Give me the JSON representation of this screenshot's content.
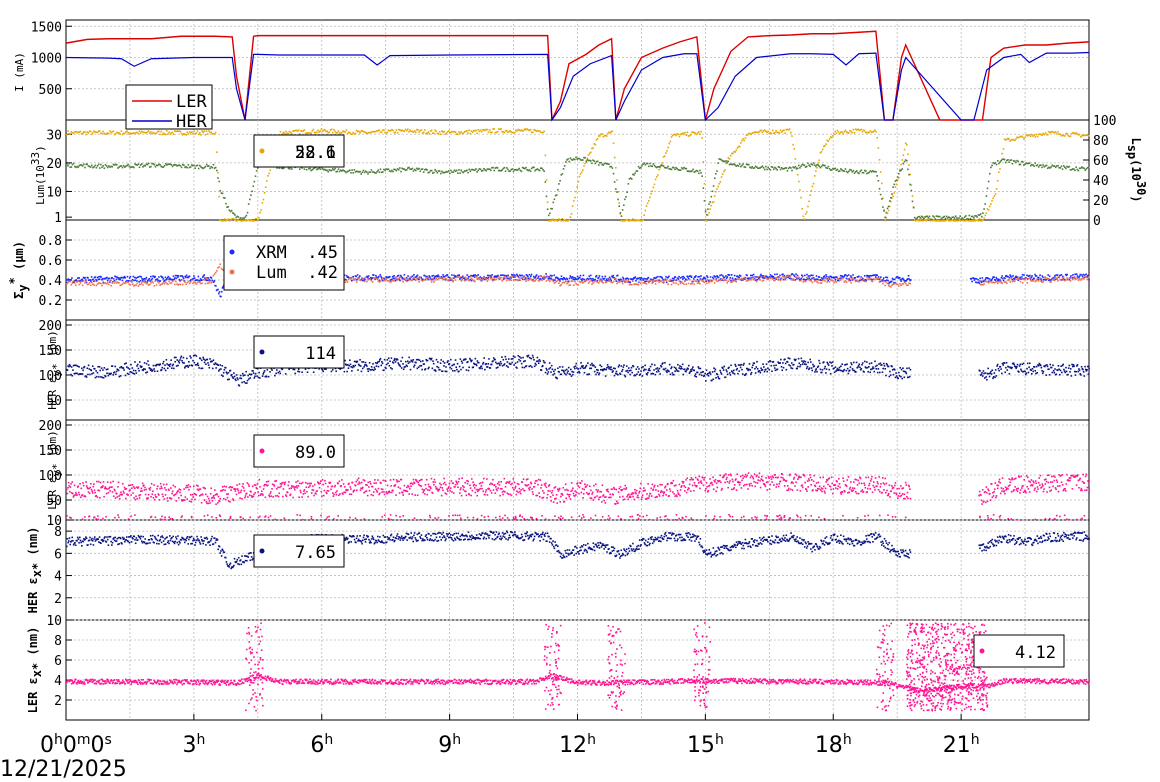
{
  "date_label": "12/21/2025",
  "time_ticks": [
    {
      "label": "0",
      "sup": "h",
      "label2": "0",
      "sup2": "m",
      "label3": "0",
      "sup3": "s"
    },
    {
      "label": "3",
      "sup": "h"
    },
    {
      "label": "6",
      "sup": "h"
    },
    {
      "label": "9",
      "sup": "h"
    },
    {
      "label": "12",
      "sup": "h"
    },
    {
      "label": "15",
      "sup": "h"
    },
    {
      "label": "18",
      "sup": "h"
    },
    {
      "label": "21",
      "sup": "h"
    }
  ],
  "panels": {
    "current": {
      "ylabel": "I (mA)",
      "ticks": [
        "500",
        "1000",
        "1500"
      ],
      "legend": [
        {
          "name": "LER",
          "color": "#dd0000"
        },
        {
          "name": "HER",
          "color": "#0000cc"
        }
      ]
    },
    "lum": {
      "ylabel_main": "Lum(10",
      "ylabel_sup": "33",
      "ylabel_end": ")",
      "ticks": [
        "1",
        "10",
        "20",
        "30"
      ],
      "right_label": "L",
      "right_sub": "sp",
      "right_mid": "(10",
      "right_sup": "30",
      "right_end": ")",
      "right_ticks": [
        "0",
        "20",
        "40",
        "60",
        "80",
        "100"
      ],
      "box_lines": [
        "52.6",
        "28.1"
      ],
      "colors": {
        "lum": "#4f7c3a",
        "lsp": "#e6a800"
      }
    },
    "sigma": {
      "ylabel": "Σ",
      "ylabel_sub": "y",
      "ylabel_sup": "*",
      "ylabel_end": " (μm)",
      "ticks": [
        "0.2",
        "0.4",
        "0.6",
        "0.8"
      ],
      "legend": [
        {
          "name": "XRM",
          "value": ".45",
          "color": "#1a2bff"
        },
        {
          "name": "Lum",
          "value": ".42",
          "color": "#f07050"
        }
      ]
    },
    "her_eps_y": {
      "ylabel": "HER ε",
      "ylabel_sub": "y*",
      "ylabel_end": " (pm)",
      "ticks": [
        "50",
        "100",
        "150",
        "200"
      ],
      "box": "114",
      "color": "#0a1480"
    },
    "ler_eps_y": {
      "ylabel": "LER ε",
      "ylabel_sub": "y*",
      "ylabel_end": " (pm)",
      "ticks": [
        "10",
        "50",
        "100",
        "150",
        "200"
      ],
      "box": "89.0",
      "color": "#ff1493"
    },
    "her_eps_x": {
      "ylabel": "HER ε",
      "ylabel_sub": "x*",
      "ylabel_end": " (nm)",
      "ticks": [
        "2",
        "4",
        "6",
        "8"
      ],
      "box": "7.65",
      "color": "#0a1480"
    },
    "ler_eps_x": {
      "ylabel": "LER ε",
      "ylabel_sub": "x*",
      "ylabel_end": " (nm)",
      "ticks": [
        "2",
        "4",
        "6",
        "8",
        "10"
      ],
      "box": "4.12",
      "color": "#ff1493"
    }
  },
  "chart_data": [
    {
      "type": "line",
      "title": "",
      "ylabel": "I (mA)",
      "xlabel": "",
      "x_unit": "hours",
      "xlim": [
        0,
        24
      ],
      "ylim": [
        0,
        1600
      ],
      "series": [
        {
          "name": "LER",
          "x": [
            0,
            0.5,
            1,
            2,
            2.7,
            3.5,
            3.9,
            4,
            4.2,
            4.4,
            4.5,
            4.6,
            5,
            6,
            8,
            10,
            11.3,
            11.4,
            11.6,
            11.8,
            12.2,
            12.5,
            12.8,
            12.9,
            13.1,
            13.5,
            14,
            14.4,
            14.8,
            15,
            15.2,
            15.6,
            16,
            16.5,
            17,
            17.5,
            18,
            18.5,
            19,
            19.2,
            19.4,
            19.6,
            19.7,
            20.5,
            21,
            21.3,
            21.5,
            21.7,
            22,
            22.5,
            23,
            23.5,
            24
          ],
          "y": [
            1230,
            1290,
            1300,
            1300,
            1340,
            1340,
            1330,
            700,
            0,
            1340,
            1350,
            1350,
            1350,
            1350,
            1350,
            1350,
            1350,
            0,
            300,
            900,
            1050,
            1200,
            1300,
            0,
            500,
            1000,
            1150,
            1250,
            1330,
            0,
            500,
            1100,
            1330,
            1350,
            1360,
            1380,
            1380,
            1400,
            1420,
            0,
            0,
            1000,
            1200,
            0,
            0,
            0,
            0,
            1000,
            1150,
            1200,
            1200,
            1230,
            1250
          ]
        },
        {
          "name": "HER",
          "x": [
            0,
            1,
            1.3,
            1.6,
            2,
            3,
            3.5,
            3.9,
            4,
            4.2,
            4.4,
            4.5,
            5,
            6,
            7,
            7.3,
            7.6,
            9,
            11.3,
            11.4,
            11.6,
            11.9,
            12.3,
            12.8,
            12.9,
            13.1,
            13.5,
            14,
            14.5,
            14.8,
            15,
            15.3,
            15.7,
            16.2,
            17,
            17.5,
            18,
            18.3,
            18.6,
            19,
            19.2,
            19.4,
            19.6,
            19.7,
            21,
            21.3,
            21.6,
            22,
            22.4,
            22.6,
            23,
            23.6,
            24
          ],
          "y": [
            1000,
            990,
            980,
            860,
            980,
            1000,
            1000,
            1000,
            500,
            0,
            1050,
            1050,
            1040,
            1040,
            1040,
            880,
            1030,
            1040,
            1050,
            0,
            200,
            700,
            900,
            1030,
            0,
            300,
            800,
            1000,
            1060,
            1060,
            0,
            200,
            700,
            1000,
            1060,
            1060,
            1050,
            880,
            1060,
            1070,
            0,
            0,
            800,
            1000,
            0,
            0,
            800,
            1000,
            1050,
            920,
            1070,
            1070,
            1080
          ]
        }
      ]
    },
    {
      "type": "line",
      "title": "",
      "ylabel": "Lum(10^33)",
      "y2label": "Lsp(10^30)",
      "xlim": [
        0,
        24
      ],
      "ylim": [
        1,
        35
      ],
      "y2lim": [
        0,
        100
      ],
      "series": [
        {
          "name": "Lum",
          "x": [
            0,
            1,
            2,
            3,
            3.5,
            3.6,
            3.8,
            4,
            4.2,
            4.5,
            5,
            6,
            7,
            8,
            9,
            10,
            11.2,
            11.3,
            11.5,
            11.7,
            12,
            12.5,
            12.8,
            13,
            13.2,
            13.5,
            14,
            14.5,
            14.9,
            15,
            15.3,
            15.6,
            16,
            17,
            17.5,
            18,
            18.5,
            19,
            19.2,
            19.4,
            19.7,
            19.9,
            21,
            21.5,
            21.7,
            22,
            23,
            24
          ],
          "y": [
            19.5,
            19,
            19.5,
            19,
            19,
            11,
            4,
            1,
            1,
            20,
            19,
            18,
            17,
            18,
            17,
            18,
            18,
            1,
            10,
            21,
            22,
            20,
            19,
            1,
            14,
            20,
            19,
            18,
            17,
            1,
            21,
            20,
            19,
            18,
            20,
            18,
            17,
            17,
            1,
            12,
            22,
            1,
            1,
            2,
            20,
            21,
            19,
            18
          ]
        },
        {
          "name": "Lsp",
          "x": [
            0,
            1,
            2,
            3,
            3.5,
            3.6,
            4,
            4.5,
            4.7,
            5,
            6,
            7,
            8,
            9,
            10,
            11.2,
            11.3,
            11.8,
            12,
            12.3,
            12.5,
            12.8,
            13,
            13.5,
            13.8,
            14.2,
            14.9,
            15,
            15.5,
            16,
            17,
            17.3,
            17.7,
            18,
            18.5,
            19,
            19.2,
            19.5,
            19.7,
            19.9,
            21,
            21.5,
            21.8,
            22,
            23,
            24
          ],
          "y": [
            88,
            88,
            88,
            88,
            88,
            0,
            0,
            0,
            40,
            88,
            90,
            88,
            90,
            88,
            90,
            90,
            0,
            0,
            40,
            70,
            85,
            88,
            0,
            0,
            40,
            85,
            88,
            0,
            60,
            88,
            90,
            0,
            70,
            88,
            90,
            90,
            0,
            40,
            80,
            0,
            0,
            0,
            30,
            80,
            88,
            85
          ]
        }
      ]
    },
    {
      "type": "scatter",
      "title": "",
      "ylabel": "Σy* (μm)",
      "xlim": [
        0,
        24
      ],
      "ylim": [
        0,
        1
      ],
      "series": [
        {
          "name": "XRM",
          "x": [
            0,
            2,
            3.4,
            3.6,
            4,
            4.5,
            6,
            8,
            10,
            11.3,
            11.6,
            12.8,
            13.2,
            14.8,
            15.2,
            17,
            17.5,
            19,
            19.3,
            19.6,
            20.5,
            21.5,
            22,
            24
          ],
          "y": [
            0.41,
            0.42,
            0.43,
            0.25,
            0.65,
            0.42,
            0.43,
            0.43,
            0.43,
            0.44,
            0.42,
            0.43,
            0.41,
            0.42,
            0.43,
            0.44,
            0.43,
            0.43,
            0.4,
            0.42,
            0.45,
            0.4,
            0.43,
            0.44
          ]
        },
        {
          "name": "Lum",
          "x": [
            0,
            2,
            3.4,
            3.6,
            4,
            4.5,
            6,
            8,
            10,
            11.3,
            11.6,
            12.8,
            13.2,
            14.8,
            15.2,
            17,
            17.5,
            19,
            19.3,
            19.6,
            21.5,
            22,
            24
          ],
          "y": [
            0.38,
            0.37,
            0.4,
            0.55,
            0.42,
            0.4,
            0.41,
            0.41,
            0.42,
            0.42,
            0.37,
            0.4,
            0.38,
            0.39,
            0.4,
            0.43,
            0.4,
            0.41,
            0.35,
            0.38,
            0.38,
            0.4,
            0.42
          ]
        }
      ]
    },
    {
      "type": "scatter",
      "title": "",
      "ylabel": "HER εy* (pm)",
      "xlim": [
        0,
        24
      ],
      "ylim": [
        10,
        210
      ],
      "series": [
        {
          "name": "HER εy*",
          "x": [
            0,
            1,
            2,
            3,
            3.5,
            4,
            4.5,
            5,
            6,
            7,
            8,
            9,
            10,
            11,
            11.5,
            12,
            12.8,
            13.5,
            14.5,
            15,
            16,
            17,
            18,
            19,
            19.5,
            21.5,
            22,
            23,
            24
          ],
          "y": [
            110,
            108,
            120,
            130,
            120,
            90,
            105,
            115,
            120,
            120,
            125,
            120,
            125,
            130,
            105,
            115,
            110,
            112,
            115,
            100,
            115,
            125,
            115,
            118,
            105,
            100,
            115,
            112,
            110
          ]
        }
      ]
    },
    {
      "type": "scatter",
      "title": "",
      "ylabel": "LER εy* (pm)",
      "xlim": [
        0,
        24
      ],
      "ylim": [
        10,
        210
      ],
      "series": [
        {
          "name": "LER εy*",
          "x": [
            0,
            1,
            2,
            3,
            3.5,
            4.5,
            5,
            6,
            7,
            8,
            9,
            10,
            11,
            11.5,
            12,
            12.8,
            13.5,
            14.5,
            15,
            16,
            17,
            18,
            19,
            19.5,
            21.5,
            22,
            23,
            24
          ],
          "y": [
            70,
            72,
            68,
            65,
            60,
            75,
            72,
            75,
            78,
            76,
            78,
            77,
            78,
            60,
            75,
            60,
            68,
            78,
            85,
            90,
            88,
            80,
            82,
            70,
            60,
            80,
            85,
            88
          ]
        }
      ]
    },
    {
      "type": "scatter",
      "title": "",
      "ylabel": "HER εx* (nm)",
      "xlim": [
        0,
        24
      ],
      "ylim": [
        0,
        9
      ],
      "series": [
        {
          "name": "HER εx*",
          "x": [
            0,
            1,
            2,
            3,
            3.5,
            3.8,
            4.5,
            5,
            6,
            7,
            8,
            9,
            10,
            11,
            11.3,
            11.6,
            12.5,
            13,
            13.5,
            14,
            14.8,
            15,
            16,
            17,
            17.5,
            18,
            18.5,
            19,
            19.5,
            21.5,
            22,
            22.5,
            23,
            24
          ],
          "y": [
            7.1,
            7.2,
            7.3,
            7.2,
            7.2,
            5,
            6,
            7.2,
            7.4,
            7.3,
            7.5,
            7.6,
            7.7,
            7.6,
            7.5,
            6,
            6.8,
            6,
            7,
            7.6,
            7.5,
            6,
            7,
            7.5,
            6.5,
            7.5,
            7,
            7.6,
            6,
            6.5,
            7.5,
            7,
            7.5,
            7.6
          ]
        }
      ]
    },
    {
      "type": "scatter",
      "title": "",
      "ylabel": "LER εx* (nm)",
      "xlim": [
        0,
        24
      ],
      "ylim": [
        0,
        10
      ],
      "series": [
        {
          "name": "LER εx*",
          "x": [
            0,
            2,
            4,
            4.5,
            5,
            8,
            11,
            11.4,
            12,
            13,
            14.9,
            15.5,
            18,
            19.2,
            20,
            20.5,
            21,
            21.6,
            22,
            24
          ],
          "y": [
            3.9,
            3.9,
            3.8,
            4.5,
            3.9,
            3.9,
            3.9,
            4.5,
            3.8,
            3.8,
            4,
            4,
            3.9,
            3.8,
            3,
            3.2,
            3.5,
            3.5,
            4,
            3.9
          ]
        }
      ]
    }
  ]
}
